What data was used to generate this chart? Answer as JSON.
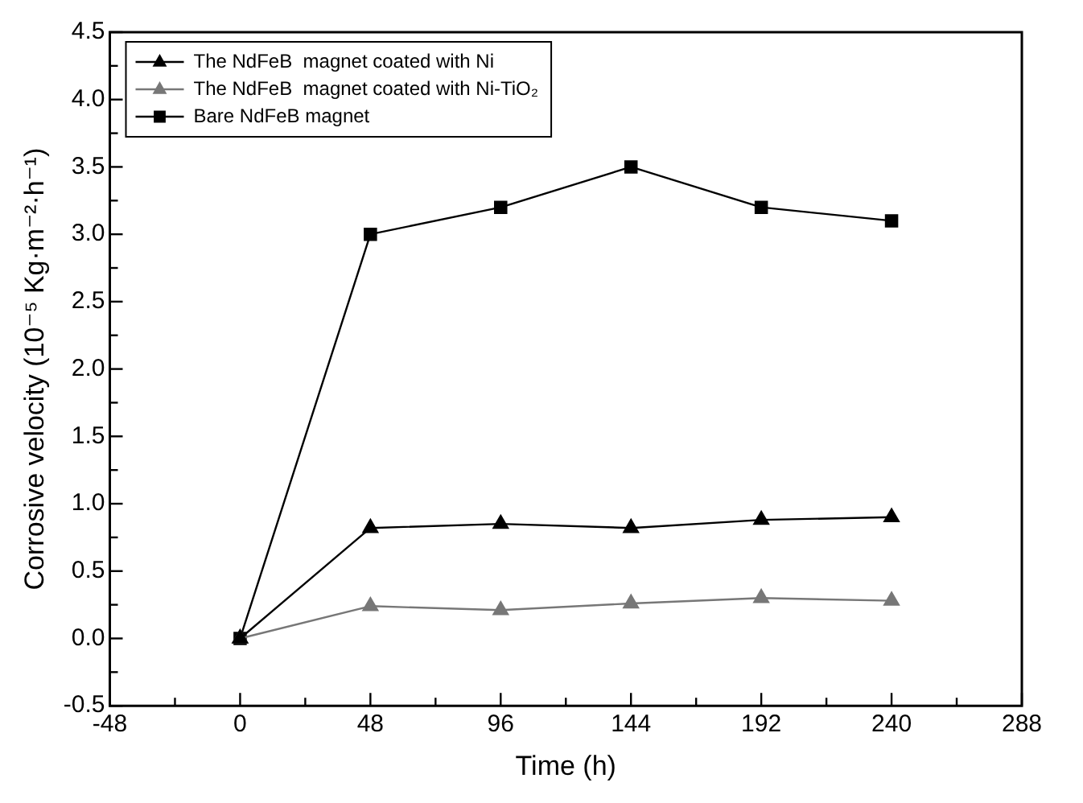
{
  "chart_data": {
    "type": "line",
    "xlabel": "Time (h)",
    "ylabel": "Corrosive velocity (10⁻⁵ Kg·m⁻²·h⁻¹)",
    "x": [
      0,
      48,
      96,
      144,
      192,
      240
    ],
    "series": [
      {
        "name": "The NdFeB  magnet coated with Ni",
        "color": "#000000",
        "marker": "triangle",
        "values": [
          0,
          0.82,
          0.85,
          0.82,
          0.88,
          0.9
        ]
      },
      {
        "name": "The NdFeB  magnet coated with Ni-TiO₂",
        "color": "#777777",
        "marker": "triangle",
        "values": [
          0,
          0.24,
          0.21,
          0.26,
          0.3,
          0.28
        ]
      },
      {
        "name": "Bare NdFeB magnet",
        "color": "#000000",
        "marker": "square",
        "values": [
          0,
          3.0,
          3.2,
          3.5,
          3.2,
          3.1
        ]
      }
    ],
    "xlim": [
      -48,
      288
    ],
    "xticks": [
      -48,
      0,
      48,
      96,
      144,
      192,
      240,
      288
    ],
    "ylim": [
      -0.5,
      4.5
    ],
    "yticks": [
      -0.5,
      {
        "value": 0,
        "label": "0.0"
      },
      0.5,
      {
        "value": 1,
        "label": "1.0"
      },
      1.5,
      {
        "value": 2,
        "label": "2.0"
      },
      2.5,
      {
        "value": 3,
        "label": "3.0"
      },
      3.5,
      {
        "value": 4,
        "label": "4.0"
      },
      4.5
    ],
    "grid": false,
    "legend": "top left",
    "line_style": "solid"
  }
}
